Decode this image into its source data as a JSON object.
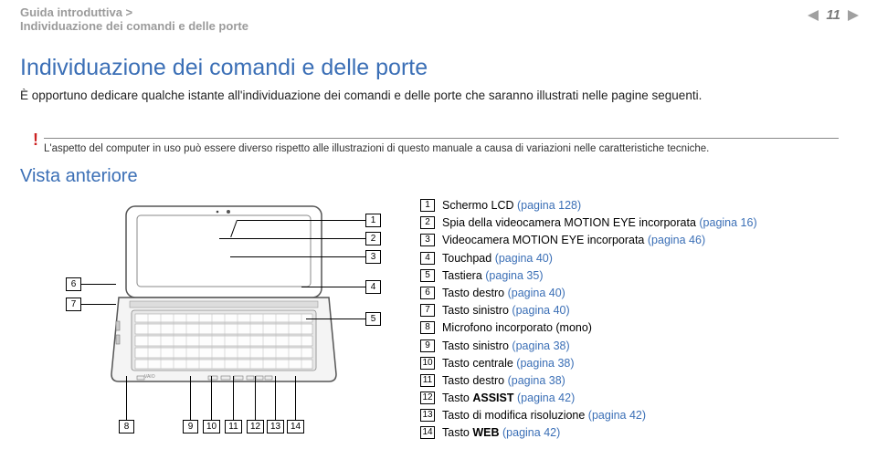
{
  "breadcrumb": {
    "line1": "Guida introduttiva >",
    "line2": "Individuazione dei comandi e delle porte"
  },
  "page_number": "11",
  "nav_arrow_color": "#808080",
  "title": "Individuazione dei comandi e delle porte",
  "intro": "È opportuno dedicare qualche istante all'individuazione dei comandi e delle porte che saranno illustrati nelle pagine seguenti.",
  "warning_mark": "!",
  "warning": "L'aspetto del computer in uso può essere diverso rispetto alle illustrazioni di questo manuale a causa di variazioni nelle caratteristiche tecniche.",
  "vista": "Vista anteriore",
  "colors": {
    "blue": "#3b6fb6",
    "grey": "#9b9b9b",
    "red": "#cc2222"
  },
  "diagram": {
    "callouts_right": [
      "1",
      "2",
      "3",
      "4",
      "5"
    ],
    "callouts_left": [
      "6",
      "7"
    ],
    "callouts_bottom": [
      "8",
      "9",
      "10",
      "11",
      "12",
      "13",
      "14"
    ]
  },
  "legend": [
    {
      "n": "1",
      "text": "Schermo LCD ",
      "link": "(pagina 128)"
    },
    {
      "n": "2",
      "text": "Spia della videocamera MOTION EYE incorporata ",
      "link": "(pagina 16)"
    },
    {
      "n": "3",
      "text": "Videocamera MOTION EYE incorporata ",
      "link": "(pagina 46)"
    },
    {
      "n": "4",
      "text": "Touchpad ",
      "link": "(pagina 40)"
    },
    {
      "n": "5",
      "text": "Tastiera ",
      "link": "(pagina 35)"
    },
    {
      "n": "6",
      "text": "Tasto destro ",
      "link": "(pagina 40)"
    },
    {
      "n": "7",
      "text": "Tasto sinistro ",
      "link": "(pagina 40)"
    },
    {
      "n": "8",
      "text": "Microfono incorporato (mono)",
      "link": ""
    },
    {
      "n": "9",
      "text": "Tasto sinistro ",
      "link": "(pagina 38)"
    },
    {
      "n": "10",
      "text": "Tasto centrale ",
      "link": "(pagina 38)"
    },
    {
      "n": "11",
      "text": "Tasto destro ",
      "link": "(pagina 38)"
    },
    {
      "n": "12",
      "text_pre": "Tasto ",
      "bold": "ASSIST",
      "text_post": " ",
      "link": "(pagina 42)"
    },
    {
      "n": "13",
      "text": "Tasto di modifica risoluzione ",
      "link": "(pagina 42)"
    },
    {
      "n": "14",
      "text_pre": "Tasto ",
      "bold": "WEB",
      "text_post": " ",
      "link": "(pagina 42)"
    }
  ]
}
